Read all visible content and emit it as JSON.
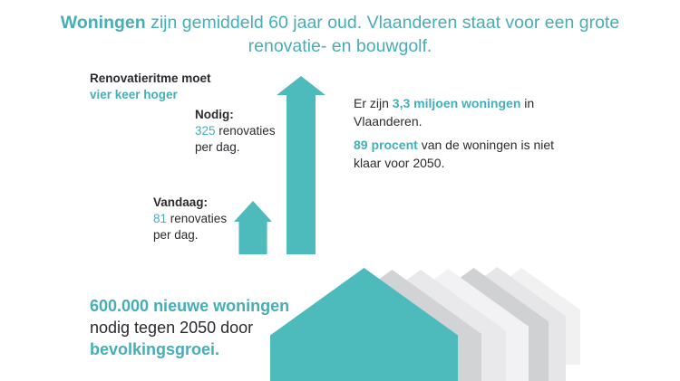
{
  "title": {
    "bold": "Woningen",
    "line1_rest": " zijn gemiddeld 60 jaar oud. Vlaanderen staat voor een grote",
    "line2": "renovatie- en bouwgolf."
  },
  "renovation_label": {
    "line1": "Renovatieritme moet",
    "line2": "vier keer hoger"
  },
  "nodig": {
    "label": "Nodig:",
    "value": "325",
    "unit": " renovaties",
    "per": "per dag."
  },
  "vandaag": {
    "label": "Vandaag:",
    "value": "81",
    "unit": " renovaties",
    "per": "per dag."
  },
  "stats": {
    "s1_pre": "Er zijn ",
    "s1_highlight": "3,3 miljoen woningen",
    "s1_post": " in",
    "s1_line2": "Vlaanderen.",
    "s2_highlight": "89 procent",
    "s2_post": " van de woningen is niet",
    "s2_line2": "klaar voor 2050."
  },
  "growth": {
    "line1": "600.000 nieuwe woningen",
    "line2": "nodig tegen 2050 door",
    "line3": "bevolkingsgroei."
  },
  "colors": {
    "teal_text": "#45aeb6",
    "teal_shape": "#4dbabc",
    "dark_text": "#2b2a2f",
    "house_colors": [
      "#4dbabc",
      "#d2d3d5",
      "#e9e9eb",
      "#f2f2f4",
      "#d0d1d3",
      "#e6e6e8",
      "#f1f1f2"
    ]
  }
}
